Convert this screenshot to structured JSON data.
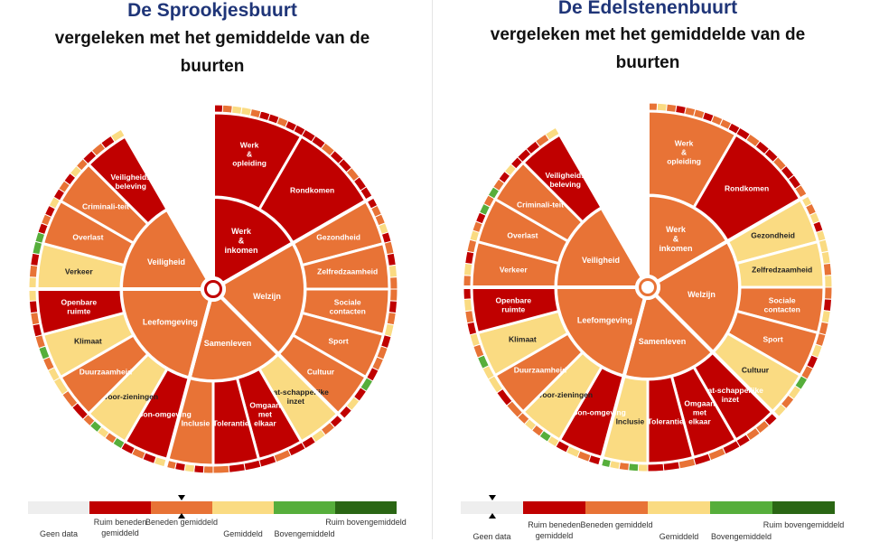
{
  "colors": {
    "geen_data": "#eeeeee",
    "ruim_beneden": "#c00000",
    "beneden": "#e87336",
    "gemiddeld": "#fadb82",
    "boven": "#56ae3b",
    "ruim_boven": "#2a6614",
    "separator": "#ffffff"
  },
  "legend": {
    "items": [
      {
        "key": "geen_data",
        "label": "Geen data"
      },
      {
        "key": "ruim_beneden",
        "label": "Ruim beneden gemiddeld"
      },
      {
        "key": "beneden",
        "label": "Beneden gemiddeld"
      },
      {
        "key": "gemiddeld",
        "label": "Gemiddeld"
      },
      {
        "key": "boven",
        "label": "Bovengemiddeld"
      },
      {
        "key": "ruim_boven",
        "label": "Ruim bovengemiddeld"
      }
    ]
  },
  "chart_data": [
    {
      "type": "sunburst",
      "title": "De Sprookjesbuurt",
      "subtitle": "vergeleken met het gemiddelde van de buurten",
      "overall_level": "beneden",
      "domains": [
        {
          "label": "Werk & inkomen",
          "level": "ruim_beneden",
          "topics": [
            {
              "label": "Werk & opleiding",
              "level": "ruim_beneden",
              "indicators": [
                "ruim_beneden",
                "beneden",
                "gemiddeld",
                "gemiddeld",
                "beneden",
                "ruim_beneden",
                "ruim_beneden",
                "beneden",
                "ruim_beneden",
                "ruim_beneden"
              ]
            },
            {
              "label": "Rondkomen",
              "level": "ruim_beneden",
              "indicators": [
                "ruim_beneden",
                "ruim_beneden",
                "beneden",
                "ruim_beneden",
                "ruim_beneden",
                "beneden",
                "ruim_beneden",
                "ruim_beneden"
              ]
            }
          ]
        },
        {
          "label": "Welzijn",
          "level": "beneden",
          "topics": [
            {
              "label": "Gezondheid",
              "level": "beneden",
              "indicators": [
                "ruim_beneden",
                "beneden",
                "beneden",
                "gemiddeld",
                "ruim_beneden"
              ]
            },
            {
              "label": "Zelfredzaamheid",
              "level": "beneden",
              "indicators": [
                "beneden",
                "ruim_beneden",
                "gemiddeld",
                "beneden"
              ]
            },
            {
              "label": "Sociale contacten",
              "level": "beneden",
              "indicators": [
                "beneden",
                "ruim_beneden",
                "beneden",
                "gemiddeld"
              ]
            },
            {
              "label": "Sport",
              "level": "beneden",
              "indicators": [
                "ruim_beneden",
                "beneden",
                "beneden",
                "ruim_beneden"
              ]
            },
            {
              "label": "Cultuur",
              "level": "beneden",
              "indicators": [
                "boven",
                "ruim_beneden",
                "gemiddeld",
                "ruim_beneden"
              ]
            }
          ]
        },
        {
          "label": "Samenleven",
          "level": "beneden",
          "topics": [
            {
              "label": "Maat-schappelijke inzet",
              "level": "gemiddeld",
              "indicators": [
                "ruim_beneden",
                "beneden",
                "gemiddeld",
                "ruim_beneden"
              ]
            },
            {
              "label": "Omgaan met elkaar",
              "level": "ruim_beneden",
              "indicators": [
                "ruim_beneden",
                "beneden",
                "ruim_beneden"
              ]
            },
            {
              "label": "Tolerantie",
              "level": "ruim_beneden",
              "indicators": [
                "ruim_beneden",
                "ruim_beneden",
                "beneden"
              ]
            },
            {
              "label": "Inclusie",
              "level": "beneden",
              "indicators": [
                "beneden",
                "ruim_beneden",
                "gemiddeld",
                "ruim_beneden",
                "beneden"
              ]
            }
          ]
        },
        {
          "label": "Leefomgeving",
          "level": "beneden",
          "topics": [
            {
              "label": "Woon-omgeving",
              "level": "ruim_beneden",
              "indicators": [
                "gemiddeld",
                "ruim_beneden",
                "beneden",
                "ruim_beneden"
              ]
            },
            {
              "label": "Voor-zieningen",
              "level": "gemiddeld",
              "indicators": [
                "boven",
                "beneden",
                "gemiddeld",
                "boven",
                "beneden"
              ]
            },
            {
              "label": "Duurzaamheid",
              "level": "beneden",
              "indicators": [
                "ruim_beneden",
                "beneden",
                "gemiddeld"
              ]
            },
            {
              "label": "Klimaat",
              "level": "gemiddeld",
              "indicators": [
                "gemiddeld",
                "beneden",
                "boven",
                "beneden"
              ]
            },
            {
              "label": "Openbare ruimte",
              "level": "ruim_beneden",
              "indicators": [
                "ruim_beneden",
                "beneden",
                "ruim_beneden",
                "gemiddeld"
              ]
            }
          ]
        },
        {
          "label": "Veiligheid",
          "level": "beneden",
          "topics": [
            {
              "label": "Verkeer",
              "level": "gemiddeld",
              "indicators": [
                "gemiddeld",
                "beneden",
                "ruim_beneden",
                "boven"
              ]
            },
            {
              "label": "Overlast",
              "level": "beneden",
              "indicators": [
                "boven",
                "ruim_beneden",
                "beneden",
                "ruim_beneden",
                "gemiddeld"
              ]
            },
            {
              "label": "Criminali-teit",
              "level": "beneden",
              "indicators": [
                "ruim_beneden",
                "beneden",
                "ruim_beneden",
                "gemiddeld",
                "beneden"
              ]
            },
            {
              "label": "Veiligheids beleving",
              "level": "ruim_beneden",
              "indicators": [
                "ruim_beneden",
                "beneden",
                "ruim_beneden",
                "gemiddeld"
              ]
            }
          ]
        }
      ]
    },
    {
      "type": "sunburst",
      "title": "De Edelstenenbuurt",
      "subtitle": "vergeleken met het gemiddelde van de buurten",
      "overall_level": "geen_data",
      "domains": [
        {
          "label": "Werk & inkomen",
          "level": "beneden",
          "topics": [
            {
              "label": "Werk & opleiding",
              "level": "beneden",
              "indicators": [
                "beneden",
                "gemiddeld",
                "beneden",
                "ruim_beneden",
                "beneden",
                "beneden",
                "ruim_beneden",
                "beneden",
                "beneden",
                "ruim_beneden"
              ]
            },
            {
              "label": "Rondkomen",
              "level": "ruim_beneden",
              "indicators": [
                "ruim_beneden",
                "beneden",
                "ruim_beneden",
                "ruim_beneden",
                "beneden",
                "ruim_beneden",
                "ruim_beneden",
                "beneden"
              ]
            }
          ]
        },
        {
          "label": "Welzijn",
          "level": "beneden",
          "topics": [
            {
              "label": "Gezondheid",
              "level": "gemiddeld",
              "indicators": [
                "gemiddeld",
                "beneden",
                "gemiddeld",
                "ruim_beneden",
                "gemiddeld"
              ]
            },
            {
              "label": "Zelfredzaamheid",
              "level": "gemiddeld",
              "indicators": [
                "gemiddeld",
                "gemiddeld",
                "beneden",
                "gemiddeld"
              ]
            },
            {
              "label": "Sociale contacten",
              "level": "beneden",
              "indicators": [
                "beneden",
                "ruim_beneden",
                "gemiddeld",
                "beneden"
              ]
            },
            {
              "label": "Sport",
              "level": "beneden",
              "indicators": [
                "beneden",
                "gemiddeld",
                "ruim_beneden",
                "beneden"
              ]
            },
            {
              "label": "Cultuur",
              "level": "gemiddeld",
              "indicators": [
                "boven",
                "gemiddeld",
                "beneden",
                "gemiddeld"
              ]
            }
          ]
        },
        {
          "label": "Samenleven",
          "level": "beneden",
          "topics": [
            {
              "label": "Maat-schappelijke inzet",
              "level": "ruim_beneden",
              "indicators": [
                "ruim_beneden",
                "beneden",
                "beneden",
                "ruim_beneden"
              ]
            },
            {
              "label": "Omgaan met elkaar",
              "level": "ruim_beneden",
              "indicators": [
                "ruim_beneden",
                "beneden",
                "ruim_beneden"
              ]
            },
            {
              "label": "Tolerantie",
              "level": "ruim_beneden",
              "indicators": [
                "beneden",
                "ruim_beneden",
                "ruim_beneden"
              ]
            },
            {
              "label": "Inclusie",
              "level": "gemiddeld",
              "indicators": [
                "gemiddeld",
                "boven",
                "beneden",
                "gemiddeld",
                "boven"
              ]
            }
          ]
        },
        {
          "label": "Leefomgeving",
          "level": "beneden",
          "topics": [
            {
              "label": "Woon-omgeving",
              "level": "ruim_beneden",
              "indicators": [
                "ruim_beneden",
                "beneden",
                "gemiddeld",
                "ruim_beneden"
              ]
            },
            {
              "label": "Voor-zieningen",
              "level": "gemiddeld",
              "indicators": [
                "gemiddeld",
                "boven",
                "beneden",
                "gemiddeld",
                "beneden"
              ]
            },
            {
              "label": "Duurzaamheid",
              "level": "beneden",
              "indicators": [
                "beneden",
                "ruim_beneden",
                "gemiddeld"
              ]
            },
            {
              "label": "Klimaat",
              "level": "gemiddeld",
              "indicators": [
                "gemiddeld",
                "boven",
                "beneden",
                "gemiddeld"
              ]
            },
            {
              "label": "Openbare ruimte",
              "level": "ruim_beneden",
              "indicators": [
                "ruim_beneden",
                "beneden",
                "gemiddeld",
                "ruim_beneden"
              ]
            }
          ]
        },
        {
          "label": "Veiligheid",
          "level": "beneden",
          "topics": [
            {
              "label": "Verkeer",
              "level": "beneden",
              "indicators": [
                "beneden",
                "gemiddeld",
                "ruim_beneden",
                "beneden"
              ]
            },
            {
              "label": "Overlast",
              "level": "beneden",
              "indicators": [
                "gemiddeld",
                "beneden",
                "ruim_beneden",
                "boven",
                "beneden"
              ]
            },
            {
              "label": "Criminali-teit",
              "level": "beneden",
              "indicators": [
                "boven",
                "beneden",
                "ruim_beneden",
                "gemiddeld",
                "ruim_beneden"
              ]
            },
            {
              "label": "Veiligheids beleving",
              "level": "ruim_beneden",
              "indicators": [
                "ruim_beneden",
                "ruim_beneden",
                "beneden",
                "gemiddeld"
              ]
            }
          ]
        }
      ]
    }
  ]
}
